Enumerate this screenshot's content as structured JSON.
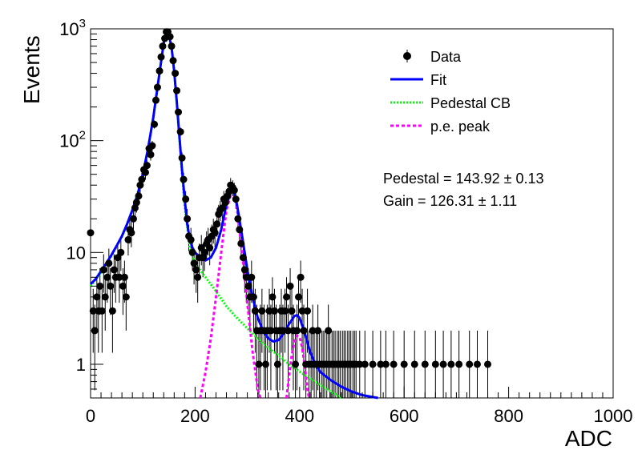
{
  "chart_data": {
    "type": "scatter",
    "title": "",
    "xlabel": "ADC",
    "ylabel": "Events",
    "xlim": [
      0,
      1000
    ],
    "ylim": [
      0.5,
      1000
    ],
    "yscale": "log",
    "x_ticks": [
      {
        "value": 0,
        "label": "0"
      },
      {
        "value": 200,
        "label": "200"
      },
      {
        "value": 400,
        "label": "400"
      },
      {
        "value": 600,
        "label": "600"
      },
      {
        "value": 800,
        "label": "800"
      },
      {
        "value": 1000,
        "label": "1000"
      }
    ],
    "y_ticks": [
      {
        "value": 1,
        "label": "1",
        "base": "1",
        "exp": ""
      },
      {
        "value": 10,
        "label": "10",
        "base": "10",
        "exp": ""
      },
      {
        "value": 100,
        "label": "10^2",
        "base": "10",
        "exp": "2"
      },
      {
        "value": 1000,
        "label": "10^3",
        "base": "10",
        "exp": "3"
      }
    ],
    "legend": {
      "position": "top-right",
      "entries": [
        {
          "label": "Data",
          "style": "marker",
          "color": "#000000"
        },
        {
          "label": "Fit",
          "style": "solid",
          "color": "#0000ff"
        },
        {
          "label": "Pedestal CB",
          "style": "dotted",
          "color": "#00ff00"
        },
        {
          "label": "p.e. peak",
          "style": "dashed",
          "color": "#ff00ff"
        }
      ]
    },
    "annotations": [
      {
        "text": "Pedestal = 143.92 ± 0.13"
      },
      {
        "text": "Gain = 126.31 ± 1.11"
      }
    ],
    "data_points": [
      {
        "x": 0,
        "y": 15
      },
      {
        "x": 5,
        "y": 3
      },
      {
        "x": 8,
        "y": 2
      },
      {
        "x": 12,
        "y": 4
      },
      {
        "x": 15,
        "y": 3
      },
      {
        "x": 18,
        "y": 5
      },
      {
        "x": 22,
        "y": 3
      },
      {
        "x": 25,
        "y": 7
      },
      {
        "x": 28,
        "y": 4
      },
      {
        "x": 32,
        "y": 6
      },
      {
        "x": 35,
        "y": 8
      },
      {
        "x": 38,
        "y": 5
      },
      {
        "x": 42,
        "y": 3
      },
      {
        "x": 45,
        "y": 7
      },
      {
        "x": 48,
        "y": 6
      },
      {
        "x": 52,
        "y": 9
      },
      {
        "x": 55,
        "y": 6
      },
      {
        "x": 58,
        "y": 10
      },
      {
        "x": 62,
        "y": 5
      },
      {
        "x": 65,
        "y": 6
      },
      {
        "x": 68,
        "y": 4
      },
      {
        "x": 72,
        "y": 13
      },
      {
        "x": 75,
        "y": 16
      },
      {
        "x": 78,
        "y": 15
      },
      {
        "x": 82,
        "y": 20
      },
      {
        "x": 85,
        "y": 25
      },
      {
        "x": 88,
        "y": 28
      },
      {
        "x": 92,
        "y": 32
      },
      {
        "x": 95,
        "y": 40
      },
      {
        "x": 98,
        "y": 45
      },
      {
        "x": 102,
        "y": 55
      },
      {
        "x": 105,
        "y": 52
      },
      {
        "x": 108,
        "y": 60
      },
      {
        "x": 112,
        "y": 85
      },
      {
        "x": 115,
        "y": 75
      },
      {
        "x": 118,
        "y": 90
      },
      {
        "x": 122,
        "y": 140
      },
      {
        "x": 125,
        "y": 230
      },
      {
        "x": 128,
        "y": 300
      },
      {
        "x": 132,
        "y": 420
      },
      {
        "x": 135,
        "y": 560
      },
      {
        "x": 138,
        "y": 700
      },
      {
        "x": 142,
        "y": 820
      },
      {
        "x": 145,
        "y": 940
      },
      {
        "x": 148,
        "y": 940
      },
      {
        "x": 152,
        "y": 850
      },
      {
        "x": 155,
        "y": 700
      },
      {
        "x": 158,
        "y": 520
      },
      {
        "x": 162,
        "y": 400
      },
      {
        "x": 165,
        "y": 280
      },
      {
        "x": 168,
        "y": 180
      },
      {
        "x": 172,
        "y": 120
      },
      {
        "x": 175,
        "y": 70
      },
      {
        "x": 178,
        "y": 45
      },
      {
        "x": 182,
        "y": 30
      },
      {
        "x": 185,
        "y": 20
      },
      {
        "x": 188,
        "y": 14
      },
      {
        "x": 192,
        "y": 13
      },
      {
        "x": 195,
        "y": 10
      },
      {
        "x": 198,
        "y": 8
      },
      {
        "x": 202,
        "y": 7
      },
      {
        "x": 205,
        "y": 6
      },
      {
        "x": 208,
        "y": 9
      },
      {
        "x": 212,
        "y": 11
      },
      {
        "x": 215,
        "y": 9
      },
      {
        "x": 218,
        "y": 10
      },
      {
        "x": 222,
        "y": 12
      },
      {
        "x": 225,
        "y": 13
      },
      {
        "x": 228,
        "y": 11
      },
      {
        "x": 232,
        "y": 14
      },
      {
        "x": 235,
        "y": 16
      },
      {
        "x": 238,
        "y": 15
      },
      {
        "x": 242,
        "y": 18
      },
      {
        "x": 245,
        "y": 22
      },
      {
        "x": 248,
        "y": 24
      },
      {
        "x": 252,
        "y": 25
      },
      {
        "x": 255,
        "y": 30
      },
      {
        "x": 258,
        "y": 28
      },
      {
        "x": 262,
        "y": 32
      },
      {
        "x": 265,
        "y": 35
      },
      {
        "x": 268,
        "y": 40
      },
      {
        "x": 272,
        "y": 38
      },
      {
        "x": 275,
        "y": 36
      },
      {
        "x": 278,
        "y": 30
      },
      {
        "x": 282,
        "y": 20
      },
      {
        "x": 285,
        "y": 16
      },
      {
        "x": 288,
        "y": 12
      },
      {
        "x": 292,
        "y": 9
      },
      {
        "x": 295,
        "y": 7
      },
      {
        "x": 298,
        "y": 6
      },
      {
        "x": 302,
        "y": 5
      },
      {
        "x": 305,
        "y": 4
      },
      {
        "x": 308,
        "y": 6
      },
      {
        "x": 312,
        "y": 4
      },
      {
        "x": 315,
        "y": 3
      },
      {
        "x": 318,
        "y": 2
      },
      {
        "x": 322,
        "y": 1
      },
      {
        "x": 325,
        "y": 2
      },
      {
        "x": 328,
        "y": 3
      },
      {
        "x": 332,
        "y": 2
      },
      {
        "x": 335,
        "y": 1
      },
      {
        "x": 338,
        "y": 2
      },
      {
        "x": 342,
        "y": 3
      },
      {
        "x": 345,
        "y": 2
      },
      {
        "x": 348,
        "y": 4
      },
      {
        "x": 352,
        "y": 3
      },
      {
        "x": 355,
        "y": 2
      },
      {
        "x": 358,
        "y": 1
      },
      {
        "x": 362,
        "y": 2
      },
      {
        "x": 365,
        "y": 3
      },
      {
        "x": 368,
        "y": 2
      },
      {
        "x": 372,
        "y": 3
      },
      {
        "x": 375,
        "y": 4
      },
      {
        "x": 378,
        "y": 2
      },
      {
        "x": 382,
        "y": 5
      },
      {
        "x": 385,
        "y": 3
      },
      {
        "x": 388,
        "y": 2
      },
      {
        "x": 392,
        "y": 1
      },
      {
        "x": 395,
        "y": 2
      },
      {
        "x": 398,
        "y": 4
      },
      {
        "x": 402,
        "y": 6
      },
      {
        "x": 405,
        "y": 3
      },
      {
        "x": 408,
        "y": 2
      },
      {
        "x": 412,
        "y": 1
      },
      {
        "x": 415,
        "y": 3
      },
      {
        "x": 418,
        "y": 1
      },
      {
        "x": 422,
        "y": 1
      },
      {
        "x": 425,
        "y": 2
      },
      {
        "x": 428,
        "y": 1
      },
      {
        "x": 432,
        "y": 1
      },
      {
        "x": 435,
        "y": 2
      },
      {
        "x": 438,
        "y": 1
      },
      {
        "x": 442,
        "y": 1
      },
      {
        "x": 445,
        "y": 1
      },
      {
        "x": 448,
        "y": 1
      },
      {
        "x": 452,
        "y": 1
      },
      {
        "x": 455,
        "y": 2
      },
      {
        "x": 458,
        "y": 1
      },
      {
        "x": 462,
        "y": 1
      },
      {
        "x": 465,
        "y": 1
      },
      {
        "x": 468,
        "y": 1
      },
      {
        "x": 472,
        "y": 1
      },
      {
        "x": 475,
        "y": 1
      },
      {
        "x": 478,
        "y": 1
      },
      {
        "x": 482,
        "y": 1
      },
      {
        "x": 485,
        "y": 1
      },
      {
        "x": 488,
        "y": 1
      },
      {
        "x": 492,
        "y": 1
      },
      {
        "x": 495,
        "y": 1
      },
      {
        "x": 498,
        "y": 1
      },
      {
        "x": 502,
        "y": 1
      },
      {
        "x": 505,
        "y": 1
      },
      {
        "x": 508,
        "y": 1
      },
      {
        "x": 515,
        "y": 1
      },
      {
        "x": 525,
        "y": 1
      },
      {
        "x": 540,
        "y": 1
      },
      {
        "x": 555,
        "y": 1
      },
      {
        "x": 565,
        "y": 1
      },
      {
        "x": 580,
        "y": 1
      },
      {
        "x": 600,
        "y": 1
      },
      {
        "x": 620,
        "y": 1
      },
      {
        "x": 640,
        "y": 1
      },
      {
        "x": 660,
        "y": 1
      },
      {
        "x": 675,
        "y": 1
      },
      {
        "x": 690,
        "y": 1
      },
      {
        "x": 705,
        "y": 1
      },
      {
        "x": 725,
        "y": 1
      },
      {
        "x": 740,
        "y": 1
      },
      {
        "x": 760,
        "y": 1
      }
    ],
    "fit_curve": [
      {
        "x": 0,
        "y": 5.2
      },
      {
        "x": 10,
        "y": 5.8
      },
      {
        "x": 20,
        "y": 6.8
      },
      {
        "x": 30,
        "y": 8.0
      },
      {
        "x": 40,
        "y": 9.5
      },
      {
        "x": 50,
        "y": 11.5
      },
      {
        "x": 60,
        "y": 14
      },
      {
        "x": 70,
        "y": 18
      },
      {
        "x": 80,
        "y": 24
      },
      {
        "x": 90,
        "y": 33
      },
      {
        "x": 100,
        "y": 50
      },
      {
        "x": 110,
        "y": 85
      },
      {
        "x": 120,
        "y": 160
      },
      {
        "x": 130,
        "y": 350
      },
      {
        "x": 140,
        "y": 750
      },
      {
        "x": 145,
        "y": 930
      },
      {
        "x": 150,
        "y": 880
      },
      {
        "x": 155,
        "y": 680
      },
      {
        "x": 160,
        "y": 420
      },
      {
        "x": 165,
        "y": 220
      },
      {
        "x": 170,
        "y": 110
      },
      {
        "x": 175,
        "y": 55
      },
      {
        "x": 180,
        "y": 30
      },
      {
        "x": 185,
        "y": 18
      },
      {
        "x": 190,
        "y": 13
      },
      {
        "x": 195,
        "y": 11
      },
      {
        "x": 200,
        "y": 10
      },
      {
        "x": 210,
        "y": 9
      },
      {
        "x": 220,
        "y": 8.5
      },
      {
        "x": 230,
        "y": 9
      },
      {
        "x": 240,
        "y": 11
      },
      {
        "x": 250,
        "y": 16
      },
      {
        "x": 260,
        "y": 27
      },
      {
        "x": 270,
        "y": 36
      },
      {
        "x": 275,
        "y": 34
      },
      {
        "x": 280,
        "y": 27
      },
      {
        "x": 290,
        "y": 14
      },
      {
        "x": 300,
        "y": 7
      },
      {
        "x": 310,
        "y": 4
      },
      {
        "x": 320,
        "y": 2.6
      },
      {
        "x": 330,
        "y": 2.0
      },
      {
        "x": 340,
        "y": 1.7
      },
      {
        "x": 350,
        "y": 1.6
      },
      {
        "x": 360,
        "y": 1.65
      },
      {
        "x": 370,
        "y": 1.9
      },
      {
        "x": 380,
        "y": 2.3
      },
      {
        "x": 390,
        "y": 2.7
      },
      {
        "x": 395,
        "y": 2.75
      },
      {
        "x": 400,
        "y": 2.6
      },
      {
        "x": 410,
        "y": 1.9
      },
      {
        "x": 420,
        "y": 1.3
      },
      {
        "x": 430,
        "y": 1.0
      },
      {
        "x": 440,
        "y": 0.85
      },
      {
        "x": 460,
        "y": 0.72
      },
      {
        "x": 480,
        "y": 0.63
      },
      {
        "x": 500,
        "y": 0.57
      },
      {
        "x": 520,
        "y": 0.53
      },
      {
        "x": 550,
        "y": 0.5
      }
    ],
    "pedestal_curve": [
      {
        "x": 0,
        "y": 5.0
      },
      {
        "x": 20,
        "y": 6.6
      },
      {
        "x": 40,
        "y": 9.3
      },
      {
        "x": 60,
        "y": 13.8
      },
      {
        "x": 80,
        "y": 23.5
      },
      {
        "x": 100,
        "y": 49
      },
      {
        "x": 110,
        "y": 84
      },
      {
        "x": 120,
        "y": 158
      },
      {
        "x": 130,
        "y": 345
      },
      {
        "x": 140,
        "y": 745
      },
      {
        "x": 145,
        "y": 925
      },
      {
        "x": 150,
        "y": 875
      },
      {
        "x": 155,
        "y": 675
      },
      {
        "x": 160,
        "y": 415
      },
      {
        "x": 165,
        "y": 215
      },
      {
        "x": 170,
        "y": 105
      },
      {
        "x": 175,
        "y": 50
      },
      {
        "x": 180,
        "y": 26
      },
      {
        "x": 190,
        "y": 11
      },
      {
        "x": 200,
        "y": 8
      },
      {
        "x": 220,
        "y": 6
      },
      {
        "x": 240,
        "y": 4.5
      },
      {
        "x": 260,
        "y": 3.3
      },
      {
        "x": 280,
        "y": 2.6
      },
      {
        "x": 300,
        "y": 2.1
      },
      {
        "x": 320,
        "y": 1.7
      },
      {
        "x": 340,
        "y": 1.4
      },
      {
        "x": 360,
        "y": 1.2
      },
      {
        "x": 380,
        "y": 1.0
      },
      {
        "x": 400,
        "y": 0.86
      },
      {
        "x": 420,
        "y": 0.75
      },
      {
        "x": 440,
        "y": 0.65
      },
      {
        "x": 460,
        "y": 0.57
      },
      {
        "x": 480,
        "y": 0.5
      }
    ],
    "pe_curve": [
      {
        "x": 210,
        "y": 0.5
      },
      {
        "x": 220,
        "y": 0.85
      },
      {
        "x": 230,
        "y": 1.7
      },
      {
        "x": 240,
        "y": 4
      },
      {
        "x": 250,
        "y": 10
      },
      {
        "x": 260,
        "y": 24
      },
      {
        "x": 270,
        "y": 35
      },
      {
        "x": 275,
        "y": 33
      },
      {
        "x": 280,
        "y": 25
      },
      {
        "x": 290,
        "y": 10
      },
      {
        "x": 300,
        "y": 3.5
      },
      {
        "x": 310,
        "y": 1.3
      },
      {
        "x": 320,
        "y": 0.6
      },
      {
        "x": 325,
        "y": 0.5
      }
    ],
    "pe2_curve": [
      {
        "x": 375,
        "y": 0.5
      },
      {
        "x": 380,
        "y": 0.8
      },
      {
        "x": 385,
        "y": 1.2
      },
      {
        "x": 390,
        "y": 1.6
      },
      {
        "x": 395,
        "y": 1.8
      },
      {
        "x": 400,
        "y": 1.75
      },
      {
        "x": 405,
        "y": 1.4
      },
      {
        "x": 410,
        "y": 0.95
      },
      {
        "x": 415,
        "y": 0.6
      },
      {
        "x": 418,
        "y": 0.5
      }
    ]
  }
}
